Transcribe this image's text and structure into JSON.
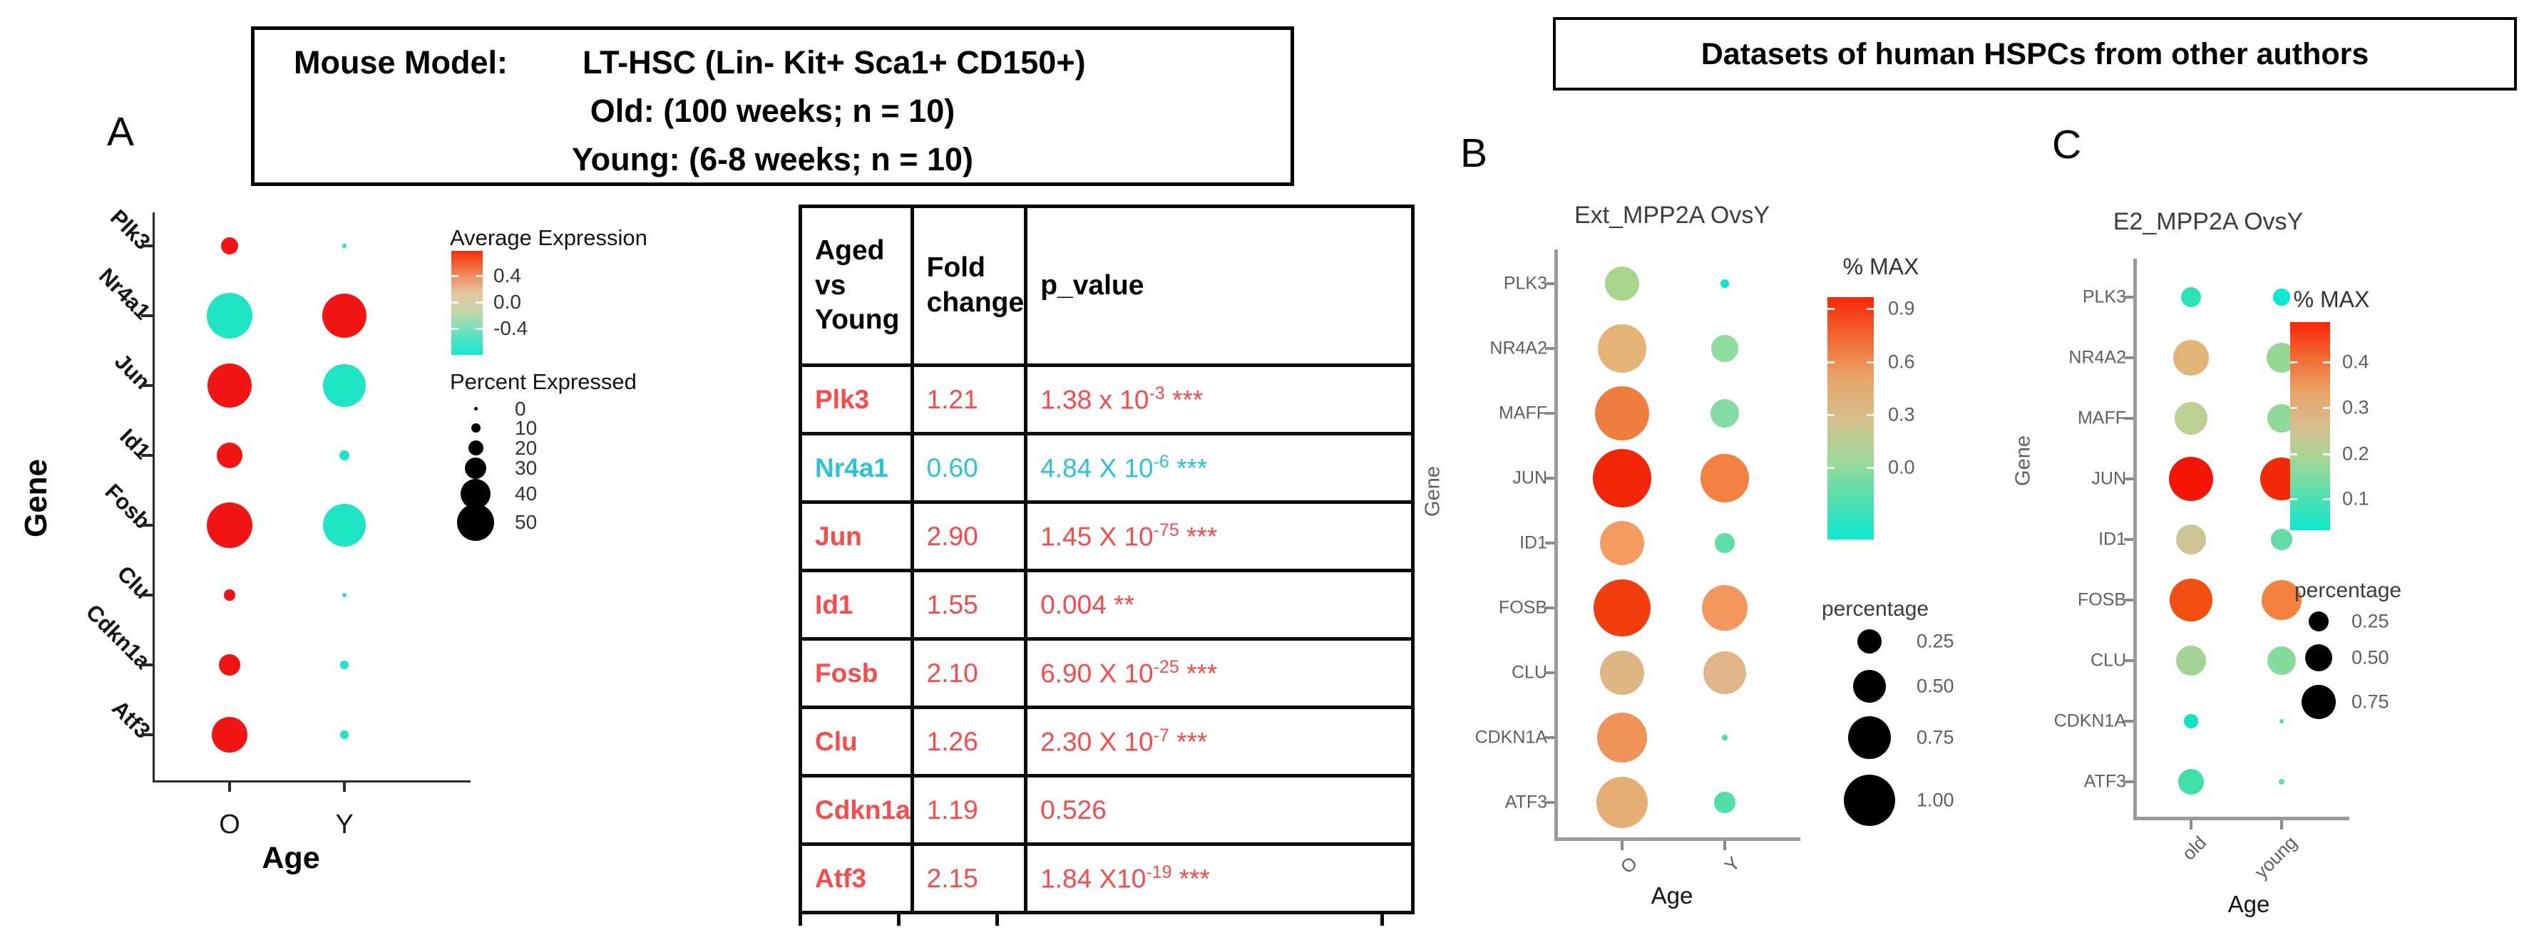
{
  "header_left": {
    "label": "Mouse Model:",
    "model": "LT-HSC (Lin- Kit+ Sca1+ CD150+)",
    "line2": "Old: (100 weeks; n = 10)",
    "line3": "Young: (6-8 weeks; n = 10)"
  },
  "header_right": {
    "text": "Datasets of human HSPCs from other authors"
  },
  "panel_labels": {
    "a": "A",
    "b": "B",
    "c": "C"
  },
  "colors": {
    "mouse_red": "#F31414",
    "mouse_teal": "#1EE5C5",
    "table_red": "#FC4949",
    "table_cyan": "#29C5D6",
    "black": "#000000"
  },
  "table": {
    "headers": [
      "Aged vs Young",
      "Fold change",
      "p_value"
    ],
    "rows": [
      {
        "gene": "Plk3",
        "color": "#FC4949",
        "fold": "1.21",
        "p_base": "1.38 x 10",
        "p_exp": "-3",
        "p_stars": "***"
      },
      {
        "gene": "Nr4a1",
        "color": "#29C5D6",
        "fold": "0.60",
        "p_base": "4.84 X 10",
        "p_exp": "-6",
        "p_stars": "***"
      },
      {
        "gene": "Jun",
        "color": "#FC4949",
        "fold": "2.90",
        "p_base": "1.45 X 10",
        "p_exp": "-75",
        "p_stars": "***"
      },
      {
        "gene": "Id1",
        "color": "#FC4949",
        "fold": "1.55",
        "p_base": "0.004",
        "p_exp": "",
        "p_stars": "**"
      },
      {
        "gene": "Fosb",
        "color": "#FC4949",
        "fold": "2.10",
        "p_base": "6.90 X 10",
        "p_exp": "-25",
        "p_stars": "***"
      },
      {
        "gene": "Clu",
        "color": "#FC4949",
        "fold": "1.26",
        "p_base": "2.30 X 10",
        "p_exp": "-7",
        "p_stars": "***"
      },
      {
        "gene": "Cdkn1a",
        "color": "#FC4949",
        "fold": "1.19",
        "p_base": "0.526",
        "p_exp": "",
        "p_stars": ""
      },
      {
        "gene": "Atf3",
        "color": "#FC4949",
        "fold": "2.15",
        "p_base": "1.84 X10",
        "p_exp": "-19",
        "p_stars": "***"
      }
    ]
  },
  "chart_data": [
    {
      "panel": "A",
      "type": "dotplot",
      "title": "",
      "xlabel": "Age",
      "ylabel": "Gene",
      "categories": [
        "O",
        "Y"
      ],
      "size_scale": {
        "kind": "linear",
        "a": 6,
        "b": 0.95
      },
      "series": [
        {
          "gene": "Plk3",
          "dots": [
            {
              "p": 19,
              "color": "#F31414"
            },
            {
              "p": 1,
              "color": "#1EE5C5"
            }
          ]
        },
        {
          "gene": "Nr4a1",
          "dots": [
            {
              "p": 62,
              "color": "#1EE5C5"
            },
            {
              "p": 59,
              "color": "#F31414"
            }
          ]
        },
        {
          "gene": "Jun",
          "dots": [
            {
              "p": 59,
              "color": "#F31414"
            },
            {
              "p": 57,
              "color": "#1EE5C5"
            }
          ]
        },
        {
          "gene": "Id1",
          "dots": [
            {
              "p": 32,
              "color": "#F31414"
            },
            {
              "p": 8,
              "color": "#1EE5C5"
            }
          ]
        },
        {
          "gene": "Fosb",
          "dots": [
            {
              "p": 61,
              "color": "#F31414"
            },
            {
              "p": 57,
              "color": "#1EE5C5"
            }
          ]
        },
        {
          "gene": "Clu",
          "dots": [
            {
              "p": 10,
              "color": "#F31414"
            },
            {
              "p": 0,
              "color": "#1EE5C5"
            }
          ]
        },
        {
          "gene": "Cdkn1a",
          "dots": [
            {
              "p": 25,
              "color": "#F31414"
            },
            {
              "p": 7,
              "color": "#1EE5C5"
            }
          ]
        },
        {
          "gene": "Atf3",
          "dots": [
            {
              "p": 46,
              "color": "#F31414"
            },
            {
              "p": 6,
              "color": "#1EE5C5"
            }
          ]
        }
      ],
      "legend": {
        "color_title": "Average Expression",
        "color_ticks": [
          "0.4",
          "0.0",
          "-0.4"
        ],
        "color_stops": [
          "#FA2D05",
          "#F07D4F",
          "#E5C49E",
          "#BFD8AD",
          "#5FE2C0",
          "#15E7CE"
        ],
        "size_title": "Percent Expressed",
        "size_ticks": [
          "0",
          "10",
          "20",
          "30",
          "40",
          "50"
        ]
      }
    },
    {
      "panel": "B",
      "type": "dotplot",
      "title": "Ext_MPP2A OvsY",
      "xlabel": "Age",
      "ylabel": "Gene",
      "categories": [
        "O",
        "Y"
      ],
      "size_scale": {
        "kind": "sqrt",
        "k": 74
      },
      "series": [
        {
          "gene": "PLK3",
          "dots": [
            {
              "p": 0.42,
              "color": "#A9D48B"
            },
            {
              "p": 0.03,
              "color": "#0BE7C9"
            }
          ]
        },
        {
          "gene": "NR4A2",
          "dots": [
            {
              "p": 0.84,
              "color": "#E6B377"
            },
            {
              "p": 0.26,
              "color": "#8FDC9F"
            }
          ]
        },
        {
          "gene": "MAFF",
          "dots": [
            {
              "p": 1.05,
              "color": "#EF7E3E"
            },
            {
              "p": 0.29,
              "color": "#82DCA3"
            }
          ]
        },
        {
          "gene": "JUN",
          "dots": [
            {
              "p": 1.23,
              "color": "#F32608"
            },
            {
              "p": 0.84,
              "color": "#F3803F"
            }
          ]
        },
        {
          "gene": "ID1",
          "dots": [
            {
              "p": 0.7,
              "color": "#F49C62"
            },
            {
              "p": 0.14,
              "color": "#5FDFA5"
            }
          ]
        },
        {
          "gene": "FOSB",
          "dots": [
            {
              "p": 1.17,
              "color": "#F23D0D"
            },
            {
              "p": 0.75,
              "color": "#F4975E"
            }
          ]
        },
        {
          "gene": "CLU",
          "dots": [
            {
              "p": 0.7,
              "color": "#DDB583"
            },
            {
              "p": 0.66,
              "color": "#E0B588"
            }
          ]
        },
        {
          "gene": "CDKN1A",
          "dots": [
            {
              "p": 0.89,
              "color": "#F0935B"
            },
            {
              "p": 0.01,
              "color": "#3FE3BA"
            }
          ]
        },
        {
          "gene": "ATF3",
          "dots": [
            {
              "p": 0.97,
              "color": "#E5AE74"
            },
            {
              "p": 0.16,
              "color": "#4FE0A8"
            }
          ]
        }
      ],
      "legend": {
        "color_title": "% MAX",
        "color_ticks": [
          "0.9",
          "0.6",
          "0.3",
          "0.0"
        ],
        "color_stops": [
          "#FA2505",
          "#F26A31",
          "#E9A468",
          "#D6BE8D",
          "#A0D898",
          "#52E0AE",
          "#0DE8D0"
        ],
        "size_title": "percentage",
        "size_ticks": [
          "0.25",
          "0.50",
          "0.75",
          "1.00"
        ]
      }
    },
    {
      "panel": "C",
      "type": "dotplot",
      "title": "E2_MPP2A OvsY",
      "xlabel": "Age",
      "ylabel": "Gene",
      "categories": [
        "old",
        "young"
      ],
      "size_scale": {
        "kind": "sqrt",
        "k": 52
      },
      "series": [
        {
          "gene": "PLK3",
          "dots": [
            {
              "p": 0.29,
              "color": "#2BE3B6"
            },
            {
              "p": 0.21,
              "color": "#0DE7CD"
            }
          ]
        },
        {
          "gene": "NR4A2",
          "dots": [
            {
              "p": 0.92,
              "color": "#E2B478"
            },
            {
              "p": 0.65,
              "color": "#96D893"
            }
          ]
        },
        {
          "gene": "MAFF",
          "dots": [
            {
              "p": 0.78,
              "color": "#BCD191"
            },
            {
              "p": 0.59,
              "color": "#8ED898"
            }
          ]
        },
        {
          "gene": "JUN",
          "dots": [
            {
              "p": 1.42,
              "color": "#F41505"
            },
            {
              "p": 1.33,
              "color": "#F42A07"
            }
          ]
        },
        {
          "gene": "ID1",
          "dots": [
            {
              "p": 0.65,
              "color": "#CCC593"
            },
            {
              "p": 0.33,
              "color": "#63DCA1"
            }
          ]
        },
        {
          "gene": "FOSB",
          "dots": [
            {
              "p": 1.33,
              "color": "#F24F10"
            },
            {
              "p": 1.16,
              "color": "#F4823E"
            }
          ]
        },
        {
          "gene": "CLU",
          "dots": [
            {
              "p": 0.65,
              "color": "#A4D494"
            },
            {
              "p": 0.59,
              "color": "#85DB9E"
            }
          ]
        },
        {
          "gene": "CDKN1A",
          "dots": [
            {
              "p": 0.15,
              "color": "#0BE5C3"
            },
            {
              "p": 0.013,
              "color": "#41E0B9"
            }
          ]
        },
        {
          "gene": "ATF3",
          "dots": [
            {
              "p": 0.48,
              "color": "#3FE0A6"
            },
            {
              "p": 0.024,
              "color": "#5FE0AC"
            }
          ]
        }
      ],
      "legend": {
        "color_title": "% MAX",
        "color_ticks": [
          "0.4",
          "0.3",
          "0.2",
          "0.1"
        ],
        "color_stops": [
          "#FA2505",
          "#F26A31",
          "#E9A468",
          "#D6BE8D",
          "#A0D898",
          "#52E0AE",
          "#0DE8D0"
        ],
        "size_title": "percentage",
        "size_ticks": [
          "0.25",
          "0.50",
          "0.75"
        ]
      }
    }
  ]
}
